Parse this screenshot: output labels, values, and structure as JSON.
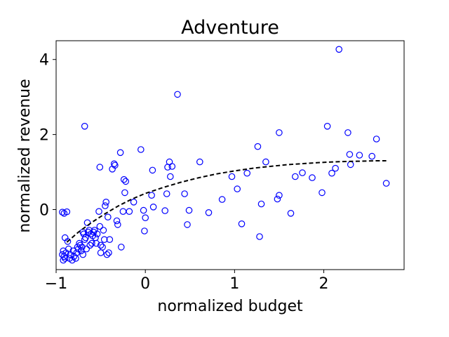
{
  "chart_data": {
    "type": "scatter",
    "title": "Adventure",
    "xlabel": "normalized budget",
    "ylabel": "normalized revenue",
    "xlim": [
      -1.0,
      2.9
    ],
    "ylim": [
      -1.6,
      4.5
    ],
    "xticks": [
      -1,
      0,
      1,
      2
    ],
    "xtick_labels": [
      "−1",
      "0",
      "1",
      "2"
    ],
    "yticks": [
      0,
      2,
      4
    ],
    "ytick_labels": [
      "0",
      "2",
      "4"
    ],
    "grid": false,
    "colors": {
      "points": "#0000ff",
      "trend": "#000000"
    },
    "series": [
      {
        "points": [
          [
            -0.93,
            -0.07
          ],
          [
            -0.91,
            -0.1
          ],
          [
            -0.88,
            -0.06
          ],
          [
            -0.9,
            -0.75
          ],
          [
            -0.87,
            -0.85
          ],
          [
            -0.92,
            -1.1
          ],
          [
            -0.93,
            -1.2
          ],
          [
            -0.91,
            -1.25
          ],
          [
            -0.9,
            -1.3
          ],
          [
            -0.92,
            -1.35
          ],
          [
            -0.89,
            -1.15
          ],
          [
            -0.86,
            -1.05
          ],
          [
            -0.85,
            -1.3
          ],
          [
            -0.84,
            -1.2
          ],
          [
            -0.82,
            -1.35
          ],
          [
            -0.81,
            -1.1
          ],
          [
            -0.8,
            -1.25
          ],
          [
            -0.78,
            -1.3
          ],
          [
            -0.77,
            -1.15
          ],
          [
            -0.76,
            -1.0
          ],
          [
            -0.75,
            -1.05
          ],
          [
            -0.74,
            -0.9
          ],
          [
            -0.73,
            -0.95
          ],
          [
            -0.72,
            -1.1
          ],
          [
            -0.71,
            -1.0
          ],
          [
            -0.7,
            -1.2
          ],
          [
            -0.7,
            -0.6
          ],
          [
            -0.69,
            -0.65
          ],
          [
            -0.68,
            -0.8
          ],
          [
            -0.67,
            -0.75
          ],
          [
            -0.66,
            -1.05
          ],
          [
            -0.65,
            -0.35
          ],
          [
            -0.64,
            -0.6
          ],
          [
            -0.63,
            -0.55
          ],
          [
            -0.62,
            -0.95
          ],
          [
            -0.61,
            -0.65
          ],
          [
            -0.6,
            -0.9
          ],
          [
            -0.59,
            -0.7
          ],
          [
            -0.58,
            -0.6
          ],
          [
            -0.57,
            -0.55
          ],
          [
            -0.56,
            -0.75
          ],
          [
            -0.55,
            -0.9
          ],
          [
            -0.54,
            -0.65
          ],
          [
            -0.52,
            -0.05
          ],
          [
            -0.51,
            -0.45
          ],
          [
            -0.5,
            -1.15
          ],
          [
            -0.5,
            -0.95
          ],
          [
            -0.48,
            -1.0
          ],
          [
            -0.47,
            -0.55
          ],
          [
            -0.46,
            -0.8
          ],
          [
            -0.45,
            0.1
          ],
          [
            -0.44,
            0.2
          ],
          [
            -0.43,
            -1.2
          ],
          [
            -0.42,
            -0.2
          ],
          [
            -0.41,
            -1.15
          ],
          [
            -0.4,
            -0.8
          ],
          [
            -0.68,
            2.22
          ],
          [
            -0.51,
            1.13
          ],
          [
            -0.37,
            1.08
          ],
          [
            -0.35,
            1.22
          ],
          [
            -0.34,
            1.18
          ],
          [
            -0.32,
            -0.3
          ],
          [
            -0.31,
            -0.4
          ],
          [
            -0.28,
            1.52
          ],
          [
            -0.27,
            -1.0
          ],
          [
            -0.25,
            -0.05
          ],
          [
            -0.24,
            0.8
          ],
          [
            -0.23,
            0.45
          ],
          [
            -0.22,
            0.75
          ],
          [
            -0.18,
            -0.05
          ],
          [
            -0.13,
            0.2
          ],
          [
            -0.05,
            1.6
          ],
          [
            -0.02,
            -0.02
          ],
          [
            -0.01,
            -0.57
          ],
          [
            0.0,
            -0.22
          ],
          [
            0.07,
            0.38
          ],
          [
            0.09,
            0.07
          ],
          [
            0.08,
            1.05
          ],
          [
            0.22,
            -0.03
          ],
          [
            0.24,
            0.42
          ],
          [
            0.25,
            1.13
          ],
          [
            0.27,
            1.27
          ],
          [
            0.28,
            0.88
          ],
          [
            0.3,
            1.15
          ],
          [
            0.36,
            3.07
          ],
          [
            0.44,
            0.42
          ],
          [
            0.47,
            -0.4
          ],
          [
            0.49,
            -0.02
          ],
          [
            0.61,
            1.27
          ],
          [
            0.71,
            -0.08
          ],
          [
            0.86,
            0.27
          ],
          [
            0.97,
            0.88
          ],
          [
            1.03,
            0.55
          ],
          [
            1.08,
            -0.38
          ],
          [
            1.14,
            0.97
          ],
          [
            1.26,
            1.68
          ],
          [
            1.28,
            -0.72
          ],
          [
            1.3,
            0.15
          ],
          [
            1.35,
            1.27
          ],
          [
            1.48,
            0.28
          ],
          [
            1.5,
            0.38
          ],
          [
            1.5,
            2.05
          ],
          [
            1.63,
            -0.1
          ],
          [
            1.68,
            0.88
          ],
          [
            1.76,
            0.98
          ],
          [
            1.87,
            0.85
          ],
          [
            1.98,
            0.45
          ],
          [
            2.04,
            2.22
          ],
          [
            2.09,
            0.97
          ],
          [
            2.13,
            1.1
          ],
          [
            2.17,
            4.27
          ],
          [
            2.27,
            2.05
          ],
          [
            2.29,
            1.47
          ],
          [
            2.3,
            1.2
          ],
          [
            2.4,
            1.45
          ],
          [
            2.54,
            1.42
          ],
          [
            2.59,
            1.88
          ],
          [
            2.7,
            0.7
          ]
        ]
      }
    ],
    "trend": {
      "style": "dashed",
      "x": [
        -0.88,
        -0.75,
        -0.6,
        -0.45,
        -0.3,
        -0.15,
        0.0,
        0.2,
        0.4,
        0.6,
        0.8,
        1.0,
        1.2,
        1.4,
        1.6,
        1.8,
        2.0,
        2.2,
        2.4,
        2.6,
        2.7
      ],
      "y": [
        -0.87,
        -0.6,
        -0.34,
        -0.11,
        0.1,
        0.28,
        0.43,
        0.59,
        0.73,
        0.85,
        0.95,
        1.03,
        1.1,
        1.15,
        1.2,
        1.23,
        1.26,
        1.28,
        1.29,
        1.3,
        1.3
      ]
    }
  }
}
